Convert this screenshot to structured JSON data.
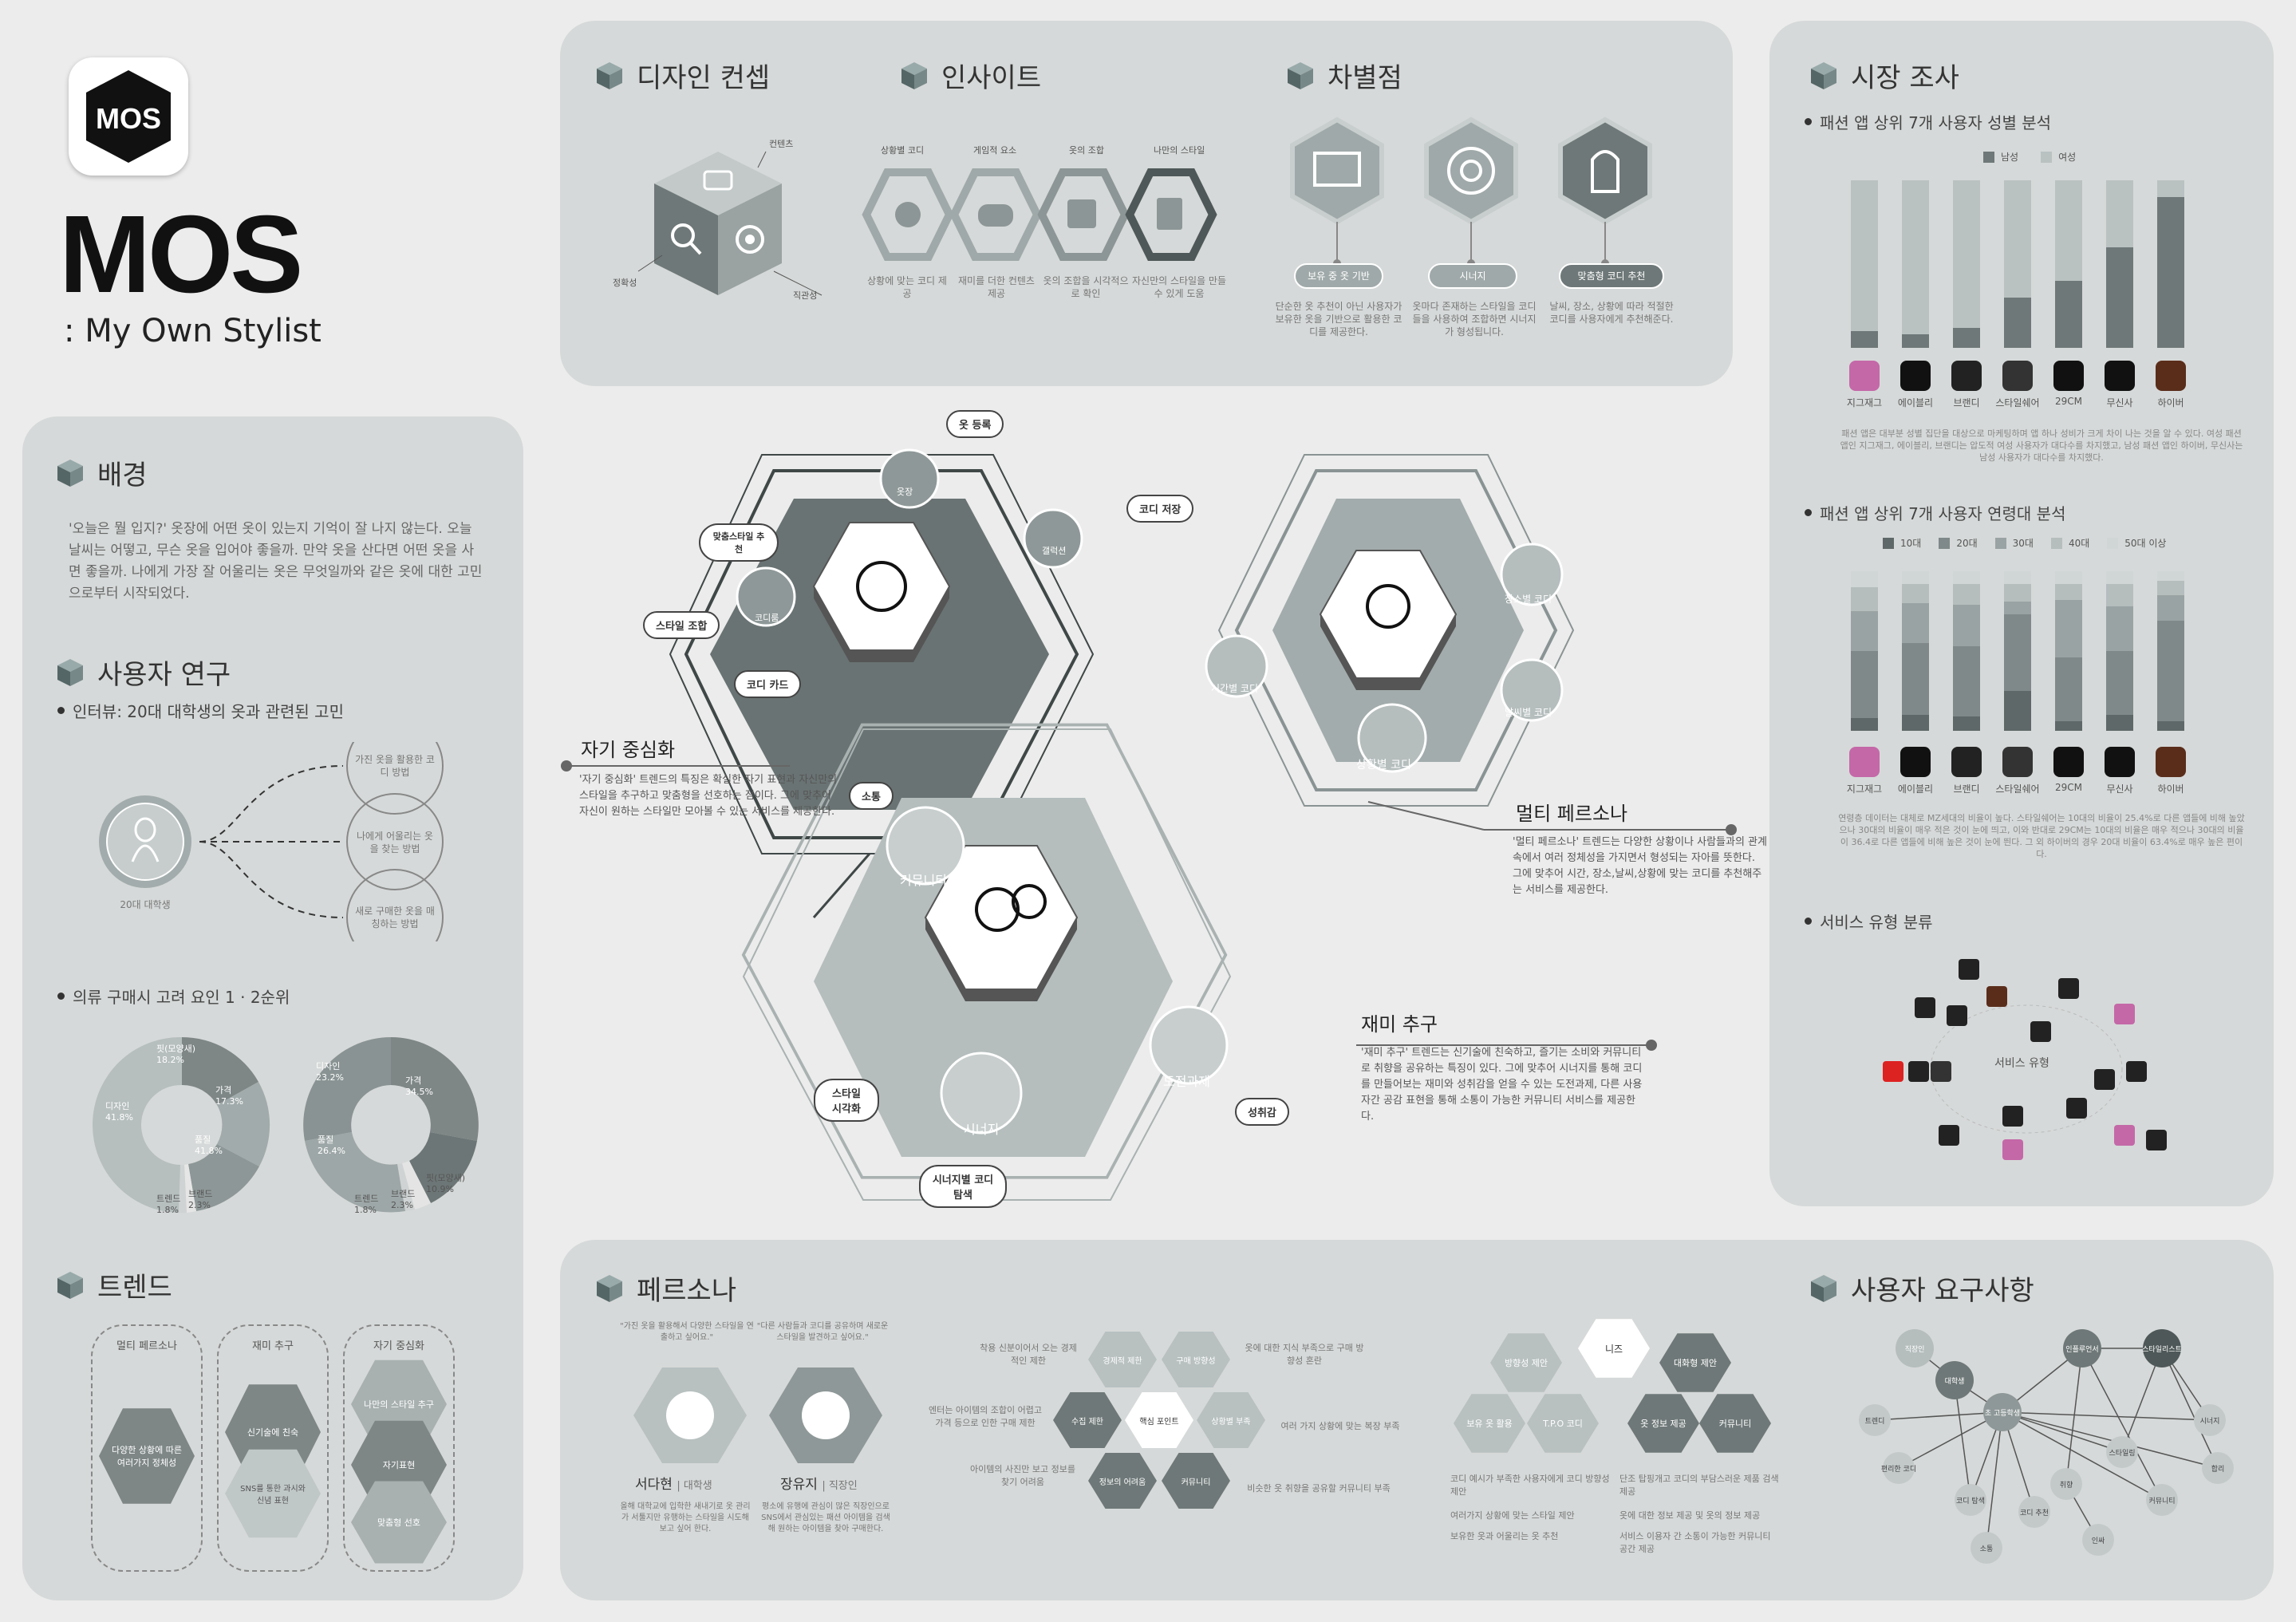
{
  "brand": {
    "logo_text": "MOS",
    "title": "MOS",
    "subtitle": ": My Own Stylist"
  },
  "sections": {
    "background": "배경",
    "user_research": "사용자 연구",
    "trend": "트렌드",
    "design_concept": "디자인 컨셉",
    "insight": "인사이트",
    "differentiation": "차별점",
    "market": "시장 조사",
    "persona": "페르소나",
    "requirements": "사용자 요구사항"
  },
  "background_text": "'오늘은 뭘 입지?' 옷장에 어떤 옷이 있는지 기억이 잘 나지 않는다. 오늘 날씨는 어떻고, 무슨 옷을 입어야 좋을까. 만약 옷을 산다면 어떤 옷을 사면 좋을까. 나에게 가장 잘 어울리는 옷은 무엇일까와 같은 옷에 대한 고민으로부터 시작되었다.",
  "research": {
    "interview": "인터뷰: 20대 대학생의 옷과 관련된 고민",
    "persona_label": "20대 대학생",
    "worries": [
      "가진 옷을 활용한 코디 방법",
      "나에게 어울리는 옷을 찾는 방법",
      "새로 구매한 옷을 매칭하는 방법"
    ],
    "purchase_title": "의류 구매시 고려 요인 1 · 2순위"
  },
  "donut1": {
    "labels": [
      {
        "t": "핏(모양새)",
        "v": "18.2%"
      },
      {
        "t": "가격",
        "v": "17.3%"
      },
      {
        "t": "품질",
        "v": "41.8%"
      },
      {
        "t": "디자인",
        "v": "41.8%"
      },
      {
        "t": "트렌드",
        "v": "1.8%"
      },
      {
        "t": "브랜드",
        "v": "2.3%"
      }
    ]
  },
  "donut2": {
    "labels": [
      {
        "t": "디자인",
        "v": "23.2%"
      },
      {
        "t": "가격",
        "v": "34.5%"
      },
      {
        "t": "품질",
        "v": "26.4%"
      },
      {
        "t": "핏(모양새)",
        "v": "10.9%"
      },
      {
        "t": "트렌드",
        "v": "1.8%"
      },
      {
        "t": "브랜드",
        "v": "2.3%"
      }
    ]
  },
  "trend_cols": [
    {
      "title": "멀티 페르소나",
      "items": [
        "다양한 상황에 따른 여러가지 정체성"
      ]
    },
    {
      "title": "재미 추구",
      "items": [
        "신기술에 친숙",
        "SNS를 통한 과시와 신념 표현"
      ]
    },
    {
      "title": "자기 중심화",
      "items": [
        "나만의 스타일 추구",
        "자기표현",
        "맞춤형 선호"
      ]
    }
  ],
  "concept": {
    "labels": [
      "컨텐츠",
      "정확성",
      "직관성"
    ]
  },
  "insight": {
    "items": [
      {
        "top": "상황별 코디",
        "bottom": "상황에 맞는 코디 제공"
      },
      {
        "top": "게임적 요소",
        "bottom": "재미를 더한 컨텐츠 제공"
      },
      {
        "top": "옷의 조합",
        "bottom": "옷의 조합을 시각적으로 확인"
      },
      {
        "top": "나만의 스타일",
        "bottom": "자신만의 스타일을 만들 수 있게 도움"
      }
    ]
  },
  "diff": {
    "items": [
      {
        "pill": "보유 중 옷 기반",
        "desc": "단순한 옷 추천이 아닌 사용자가 보유한 옷을 기반으로 활용한 코디를 제공한다."
      },
      {
        "pill": "시너지",
        "desc": "옷마다 존재하는 스타일을 코디들을 사용하여 조합하면 시너지가 형성됩니다."
      },
      {
        "pill": "맞춤형 코디 추천",
        "desc": "날씨, 장소, 상황에 따라 적절한 코디를 사용자에게 추천해준다."
      }
    ]
  },
  "center": {
    "hex1": {
      "tags": [
        "옷 등록",
        "코디 저장",
        "맞춤스타일 추천",
        "스타일 조합",
        "코디 카드"
      ],
      "icons": [
        "옷장",
        "갤럭션",
        "코디룸"
      ]
    },
    "hex2": {
      "icons": [
        "장소별 코디",
        "시간별 코디",
        "날씨별 코디",
        "상황별 코디"
      ]
    },
    "hex3": {
      "tags": [
        "소통",
        "스타일 시각화",
        "시너지별 코디 탐색",
        "성취감"
      ],
      "icons": [
        "커뮤니티",
        "도전과제",
        "시너지"
      ]
    },
    "callouts": [
      {
        "title": "자기 중심화",
        "text": "'자기 중심화' 트렌드의 특징은 확실한 자기 표현과 자신만의 스타일을 추구하고 맞춤형을 선호하는 점이다. 그에 맞추어 자신이 원하는 스타일만 모아볼 수 있는 서비스를 제공한다."
      },
      {
        "title": "멀티 페르소나",
        "text": "'멀티 페르소나' 트렌드는 다양한 상황이나 사람들과의 관계 속에서 여러 정체성을 가지면서 형성되는 자아를 뜻한다. 그에 맞추어 시간, 장소,날씨,상황에 맞는 코디를 추천해주는 서비스를 제공한다."
      },
      {
        "title": "재미 추구",
        "text": "'재미 추구' 트렌드는 신기술에 친숙하고, 즐기는 소비와 커뮤니티로 취향을 공유하는 특징이 있다. 그에 맞추어 시너지를 통해 코디를 만들어보는 재미와 성취감을 얻을 수 있는 도전과제, 다른 사용자간 공감 표현을 통해 소통이 가능한 커뮤니티 서비스를 제공한다."
      }
    ]
  },
  "market": {
    "gender_title": "패션 앱 상위 7개 사용자 성별 분석",
    "gender_legend": [
      "남성",
      "여성"
    ],
    "apps": [
      "지그재그",
      "에이블리",
      "브랜디",
      "스타일쉐어",
      "29CM",
      "무신사",
      "하이버"
    ],
    "male_pct": [
      10,
      8,
      12,
      30,
      40,
      60,
      90
    ],
    "gender_note": "패션 앱은 대부분 성별 집단을 대상으로 마케팅하며 앱 하나 성비가 크게 차이 나는 것을 알 수 있다. 여성 패션 앱인 지그재그, 에이블리, 브랜디는 압도적 여성 사용자가 대다수를 차지했고, 남성 패션 앱인 하이버, 무신사는 남성 사용자가 대다수를 차지했다.",
    "age_title": "패션 앱 상위 7개 사용자 연령대 분석",
    "age_legend": [
      "10대",
      "20대",
      "30대",
      "40대",
      "50대 이상"
    ],
    "age_note": "연령층 데이터는 대체로 MZ세대의 비율이 높다. 스타일쉐어는 10대의 비율이 25.4%로 다른 앱들에 비해 높았으나 30대의 비율이 매우 적은 것이 눈에 띄고, 이와 반대로 29CM는 10대의 비율은 매우 적으나 30대의 비율이 36.4로 다른 앱들에 비해 높은 것이 눈에 띈다. 그 외 하이버의 경우 20대 비율이 63.4%로 매우 높은 편이다.",
    "service_title": "서비스 유형 분류",
    "service_center": "서비스 유형"
  },
  "persona": {
    "p1": {
      "name": "서다현",
      "role": "대학생",
      "quote": "\"가진 옷을 활용해서 다양한 스타일을 연출하고 싶어요.\"",
      "desc": "올해 대학교에 입학한 새내기로 옷 관리가 서툴지만 유행하는 스타일을 시도해 보고 싶어 한다."
    },
    "p2": {
      "name": "장유지",
      "role": "직장인",
      "quote": "\"다른 사람들과 코디를 공유하며 새로운 스타일을 발견하고 싶어요.\"",
      "desc": "평소에 유행에 관심이 많은 직장인으로 SNS에서 관심있는 패션 아이템을 검색해 원하는 아이템을 찾아 구매한다."
    },
    "pain_left": [
      "엔터는 아이템의 조합이 어렵고 가격 등으로 인한 구매 제한",
      "아이템의 사진만 보고 정보를 찾기 어려움"
    ],
    "pain_top": [
      "착용 신분이어서 오는 경제적인 제한",
      "옷에 대한 지식 부족으로 구매 방향성 혼란"
    ],
    "center_hex": "핵심 포인트",
    "side_hex": [
      "경제적 제한",
      "구매 방향성",
      "수집 제한",
      "상황별 부족",
      "정보의 어려움",
      "커뮤니티"
    ],
    "pain_right": [
      "여러 가지 상황에 맞는 복장 부족",
      "비슷한 옷 취향을 공유할 커뮤니티 부족"
    ]
  },
  "needs": {
    "center": "니즈",
    "hexes": [
      "방향성 제안",
      "보유 옷 활용",
      "T.P.O 코디",
      "대화형 제안",
      "옷 정보 제공",
      "커뮤니티"
    ],
    "bullets_left": [
      "코디 예시가 부족한 사용자에게 코디 방향성 제안",
      "여러가지 상황에 맞는 스타일 제안",
      "보유한 옷과 어울리는 옷 추천"
    ],
    "bullets_right": [
      "단조 탑핑개고 코디의 부담스러운 제품 검색 제공",
      "옷에 대한 정보 제공 및 옷의 정보 제공",
      "서비스 이용자 간 소통이 가능한 커뮤니티 공간 제공"
    ],
    "network_nodes": [
      "직장인",
      "대학생",
      "인플루언서",
      "스타일리스트",
      "초 고등학생",
      "트렌디",
      "시너지",
      "합리",
      "커뮤니티",
      "편리한 코디",
      "코디 탐색",
      "코디 추천",
      "소통",
      "인싸",
      "취향",
      "스타일링"
    ]
  }
}
